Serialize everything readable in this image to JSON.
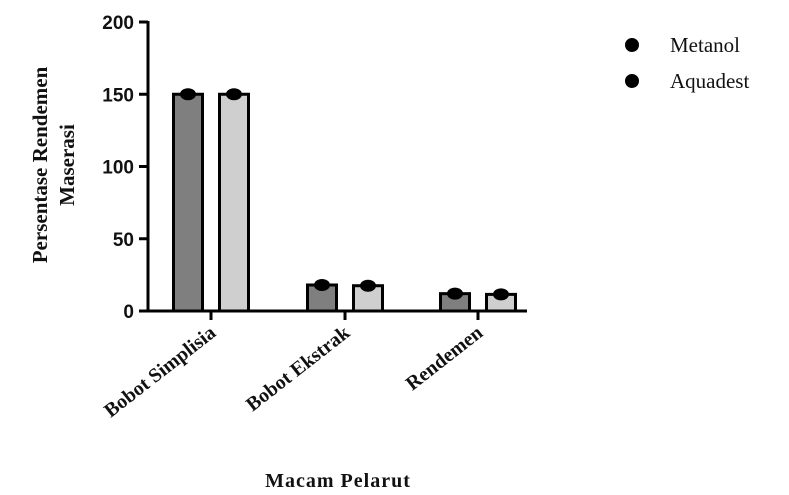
{
  "chart_data": {
    "type": "bar",
    "title": "",
    "xlabel": "Macam Pelarut",
    "ylabel_lines": [
      "Persentase Rendemen",
      "Maserasi"
    ],
    "ylim": [
      0,
      200
    ],
    "yticks": [
      0,
      50,
      100,
      150,
      200
    ],
    "categories": [
      "Bobot Simplisia",
      "Bobot Ekstrak",
      "Rendemen"
    ],
    "series": [
      {
        "name": "Metanol",
        "values": [
          150,
          18,
          12
        ],
        "color": "#7f7f7f"
      },
      {
        "name": "Aquadest",
        "values": [
          150,
          17.5,
          11.5
        ],
        "color": "#cfcfcf"
      }
    ],
    "legend_position": "top-right",
    "grid": false,
    "marker_color": "#000000"
  }
}
